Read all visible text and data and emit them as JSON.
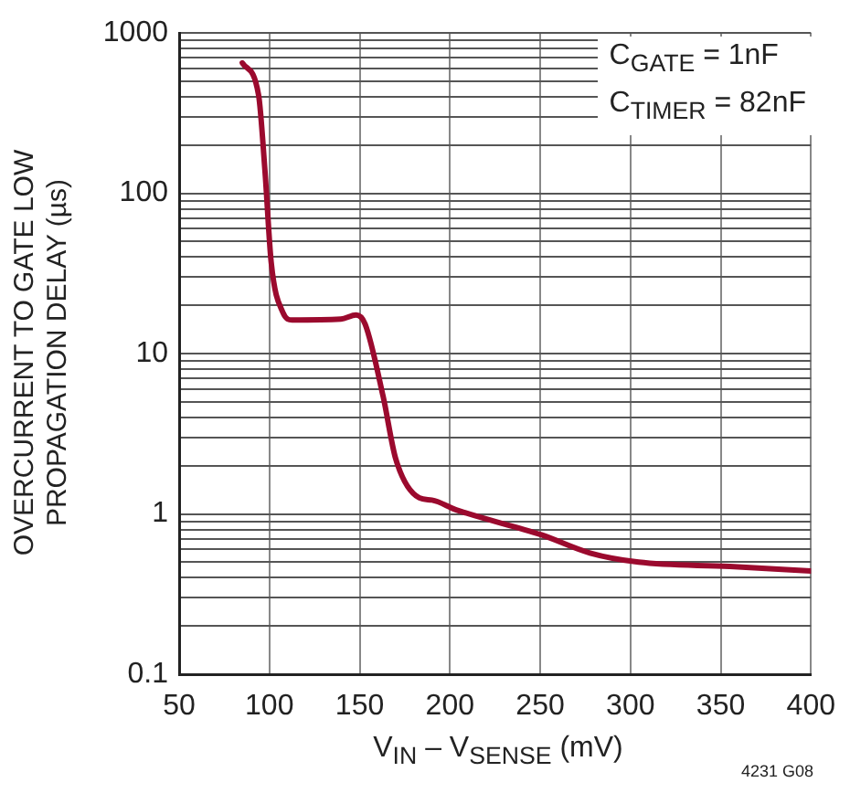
{
  "chart_data": {
    "type": "line",
    "xlabel": "V$_{IN}$ – V$_{SENSE}$ (mV)",
    "ylabel": "OVERCURRENT TO GATE LOW\nPROPAGATION DELAY (µs)",
    "annotations": [
      "C$_{GATE}$ = 1nF",
      "C$_{TIMER}$ = 82nF",
      "4231 G08"
    ],
    "x": [
      85,
      94,
      97.5,
      101,
      107.5,
      112.6,
      139.6,
      148,
      153,
      163,
      170,
      183,
      190,
      203.5,
      250.7,
      277.6,
      304.5,
      355,
      400
    ],
    "series": [
      {
        "color": "#9b0a2e",
        "values": [
          650,
          410,
          140,
          37,
          18,
          16.2,
          16.4,
          17.4,
          15.3,
          5.4,
          2.2,
          1.26,
          1.22,
          1.06,
          0.74,
          0.57,
          0.5,
          0.47,
          0.44
        ]
      }
    ],
    "log": "y",
    "xlim": [
      50,
      400
    ],
    "xticks": [
      50,
      100,
      150,
      200,
      250,
      300,
      350,
      400
    ],
    "ylim": [
      0.1,
      1000
    ],
    "yticks": [
      0.1,
      {
        "value": 0.2,
        "label": null
      },
      {
        "value": 0.3,
        "label": null
      },
      {
        "value": 0.4,
        "label": null
      },
      {
        "value": 0.5,
        "label": null
      },
      {
        "value": 0.6,
        "label": null
      },
      {
        "value": 0.7,
        "label": null
      },
      {
        "value": 0.8,
        "label": null
      },
      {
        "value": 0.9,
        "label": null
      },
      1,
      {
        "value": 2,
        "label": null
      },
      {
        "value": 3,
        "label": null
      },
      {
        "value": 4,
        "label": null
      },
      {
        "value": 5,
        "label": null
      },
      {
        "value": 6,
        "label": null
      },
      {
        "value": 7,
        "label": null
      },
      {
        "value": 8,
        "label": null
      },
      {
        "value": 9,
        "label": null
      },
      10,
      {
        "value": 20,
        "label": null
      },
      {
        "value": 30,
        "label": null
      },
      {
        "value": 40,
        "label": null
      },
      {
        "value": 50,
        "label": null
      },
      {
        "value": 60,
        "label": null
      },
      {
        "value": 70,
        "label": null
      },
      {
        "value": 80,
        "label": null
      },
      {
        "value": 90,
        "label": null
      },
      100,
      {
        "value": 200,
        "label": null
      },
      {
        "value": 300,
        "label": null
      },
      {
        "value": 400,
        "label": null
      },
      {
        "value": 500,
        "label": null
      },
      {
        "value": 600,
        "label": null
      },
      {
        "value": 700,
        "label": null
      },
      {
        "value": 800,
        "label": null
      },
      {
        "value": 900,
        "label": null
      },
      1000
    ],
    "grid": true,
    "legend": false,
    "marker": "none",
    "line_style": "solid"
  }
}
